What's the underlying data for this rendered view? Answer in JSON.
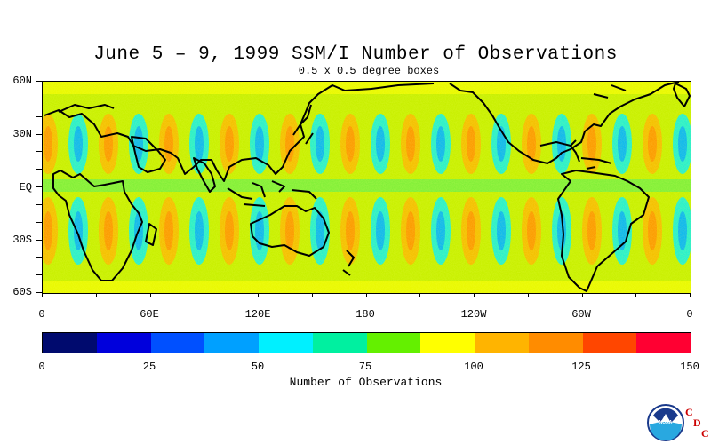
{
  "title": "June 5 – 9, 1999 SSM/I Number of Observations",
  "subtitle": "0.5 x 0.5 degree boxes",
  "map": {
    "lat_labels": [
      "60N",
      "30N",
      "EQ",
      "30S",
      "60S"
    ],
    "lon_labels": [
      "0",
      "60E",
      "120E",
      "180",
      "120W",
      "60W",
      "0"
    ],
    "lat_range": [
      -60,
      60
    ],
    "lon_range": [
      0,
      360
    ]
  },
  "colorbar": {
    "colors": [
      "#000a6e",
      "#0000dc",
      "#0050ff",
      "#00a0ff",
      "#00f0ff",
      "#00f0a0",
      "#64f000",
      "#ffff00",
      "#ffb400",
      "#ff8c00",
      "#ff4600",
      "#ff0032"
    ],
    "tick_labels": [
      "0",
      "25",
      "50",
      "75",
      "100",
      "125",
      "150"
    ],
    "range": [
      0,
      150
    ],
    "title": "Number of Observations"
  },
  "logo": {
    "emblem_text": "NOAA",
    "letters": [
      "C",
      "D",
      "C"
    ],
    "letter_color": "#cc0000",
    "emblem_colors": [
      "#1a3a8c",
      "#29a8e0"
    ]
  }
}
